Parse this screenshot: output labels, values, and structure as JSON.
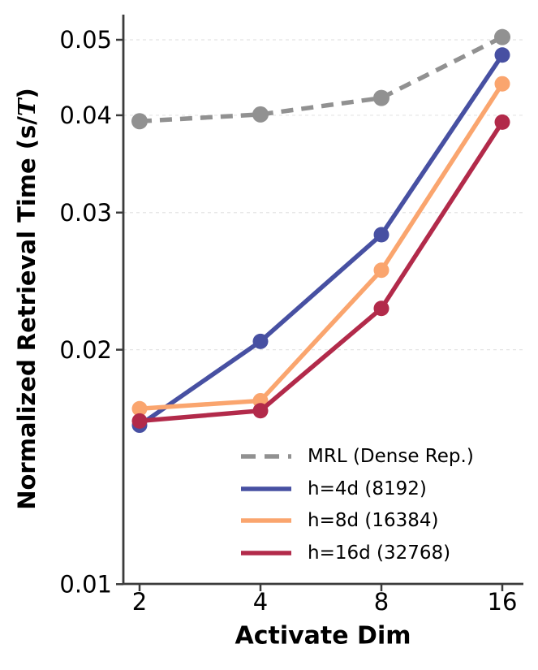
{
  "figure": {
    "background": "#ffffff",
    "axis_color": "#3b3b3b",
    "grid_color": "#e4e4e4",
    "text_color": "#000000"
  },
  "labels": {
    "x_title": "Activate Dim",
    "y_title_prefix": "Normalized Retrieval Time (s/",
    "y_title_math": "T",
    "y_title_suffix": ")"
  },
  "chart_data": {
    "type": "line",
    "title": "",
    "xlabel": "Activate Dim",
    "ylabel": "Normalized Retrieval Time (s/T)",
    "xscale": "log2",
    "yscale": "log10",
    "x": [
      2,
      4,
      8,
      16
    ],
    "xtick_labels": [
      "2",
      "4",
      "8",
      "16"
    ],
    "yticks": [
      0.01,
      0.02,
      0.03,
      0.04,
      0.05
    ],
    "ytick_labels": [
      "0.01",
      "0.02",
      "0.03",
      "0.04",
      "0.05"
    ],
    "xlim": [
      1.8,
      18.5
    ],
    "ylim": [
      0.01,
      0.052
    ],
    "grid": "horizontal dashed",
    "legend_position": "lower right inside, no frame",
    "series": [
      {
        "name": "MRL (Dense Rep.)",
        "color": "#919191",
        "line": "dashed",
        "marker": "circle",
        "values": [
          0.0393,
          0.0401,
          0.0421,
          0.0504
        ]
      },
      {
        "name": "h=4d (8192)",
        "color": "#4750A2",
        "line": "solid",
        "marker": "circle",
        "values": [
          0.016,
          0.0205,
          0.0281,
          0.0478
        ]
      },
      {
        "name": "h=8d (16384)",
        "color": "#FAA56E",
        "line": "solid",
        "marker": "circle",
        "values": [
          0.0168,
          0.0172,
          0.0253,
          0.0439
        ]
      },
      {
        "name": "h=16d (32768)",
        "color": "#B22A4A",
        "line": "solid",
        "marker": "circle",
        "values": [
          0.0162,
          0.0167,
          0.0226,
          0.0392
        ]
      }
    ]
  }
}
